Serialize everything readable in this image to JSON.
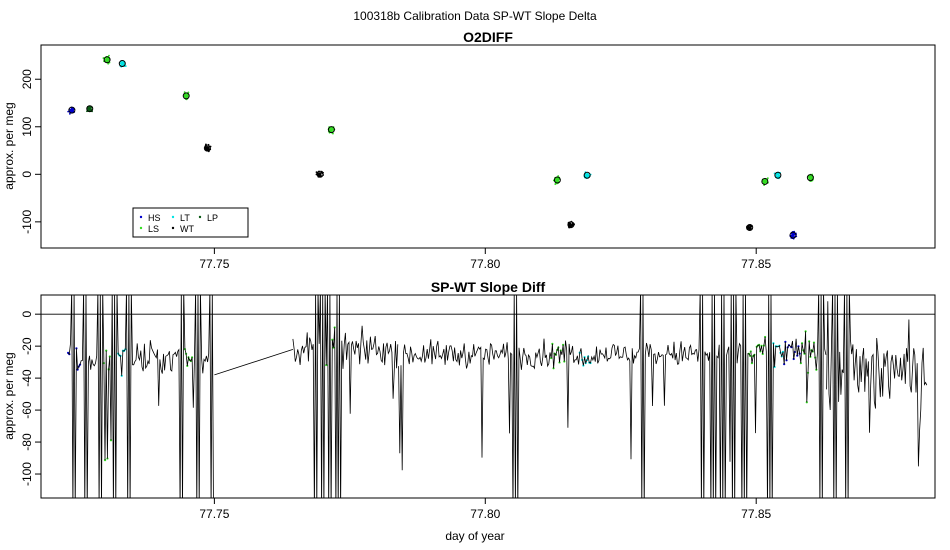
{
  "figure": {
    "suptitle": "100318b   Calibration Data SP-WT Slope Delta",
    "xlabel": "day of year"
  },
  "colors": {
    "HS": "#0000cd",
    "LS": "#33dd22",
    "LT": "#00e5e5",
    "WT": "#000000",
    "LP": "#0a5a14",
    "trace": "#000000"
  },
  "chart_data": [
    {
      "type": "scatter",
      "title": "O2DIFF",
      "xlabel": "",
      "ylabel": "approx. per meg",
      "xlim": [
        77.718,
        77.883
      ],
      "ylim": [
        -155,
        272
      ],
      "xticks": [
        77.75,
        77.8,
        77.85
      ],
      "xtick_labels": [
        "77.75",
        "77.80",
        "77.85"
      ],
      "yticks": [
        -100,
        0,
        100,
        200
      ],
      "ytick_labels": [
        "-100",
        "0",
        "100",
        "200"
      ],
      "legend": {
        "position": "bottom-left",
        "entries": [
          {
            "label": "HS",
            "color_key": "HS"
          },
          {
            "label": "LS",
            "color_key": "LS"
          },
          {
            "label": "LT",
            "color_key": "LT"
          },
          {
            "label": "WT",
            "color_key": "WT"
          },
          {
            "label": "LP",
            "color_key": "LP"
          }
        ]
      },
      "series": [
        {
          "name": "HS",
          "x": [
            77.7237,
            77.8568
          ],
          "y": [
            135,
            -128
          ]
        },
        {
          "name": "LS",
          "x": [
            77.7302,
            77.7448,
            77.7716,
            77.8133,
            77.8516,
            77.86
          ],
          "y": [
            241,
            165,
            94,
            -12,
            -15,
            -7
          ]
        },
        {
          "name": "LT",
          "x": [
            77.733,
            77.8188,
            77.854
          ],
          "y": [
            233,
            -2,
            -2
          ]
        },
        {
          "name": "WT",
          "x": [
            77.7487,
            77.7695,
            77.8158,
            77.8488
          ],
          "y": [
            55,
            0,
            -106,
            -112
          ]
        },
        {
          "name": "LP",
          "x": [
            77.727
          ],
          "y": [
            138
          ]
        }
      ]
    },
    {
      "type": "line",
      "title": "SP-WT Slope Diff",
      "xlabel": "day of year",
      "ylabel": "approx. per meg",
      "xlim": [
        77.718,
        77.883
      ],
      "ylim": [
        -115,
        12
      ],
      "xticks": [
        77.75,
        77.8,
        77.85
      ],
      "xtick_labels": [
        "77.75",
        "77.80",
        "77.85"
      ],
      "yticks": [
        -100,
        -80,
        -60,
        -40,
        -20,
        0
      ],
      "ytick_labels": [
        "-100",
        "-80",
        "-60",
        "-40",
        "-20",
        "0"
      ],
      "hline": 0,
      "trace_segments": [
        {
          "x_start": 77.723,
          "x_end": 77.75,
          "base": -28,
          "noise": 10
        },
        {
          "x_start": 77.7645,
          "x_end": 77.784,
          "base": -22,
          "noise": 10
        },
        {
          "x_start": 77.784,
          "x_end": 77.849,
          "base": -25,
          "noise": 8
        },
        {
          "x_start": 77.849,
          "x_end": 77.863,
          "base": -24,
          "noise": 10
        },
        {
          "x_start": 77.863,
          "x_end": 77.8815,
          "base": -34,
          "noise": 28
        }
      ],
      "connector": {
        "x": [
          77.75,
          77.7645
        ],
        "y": [
          -38,
          -22
        ]
      },
      "spikes_x": [
        77.724,
        77.7262,
        77.729,
        77.7315,
        77.7342,
        77.744,
        77.747,
        77.7495,
        77.7688,
        77.77,
        77.7712,
        77.7728,
        77.8055,
        77.829,
        77.84,
        77.842,
        77.8438,
        77.8458,
        77.8478,
        77.8525,
        77.862,
        77.8645,
        77.8668
      ],
      "highlights": [
        {
          "color_key": "HS",
          "x_start": 77.723,
          "x_end": 77.7255
        },
        {
          "color_key": "LS",
          "x_start": 77.729,
          "x_end": 77.7318
        },
        {
          "color_key": "LT",
          "x_start": 77.7318,
          "x_end": 77.7345
        },
        {
          "color_key": "LS",
          "x_start": 77.7438,
          "x_end": 77.746
        },
        {
          "color_key": "LS",
          "x_start": 77.7695,
          "x_end": 77.7725
        },
        {
          "color_key": "LS",
          "x_start": 77.812,
          "x_end": 77.815
        },
        {
          "color_key": "LT",
          "x_start": 77.817,
          "x_end": 77.82
        },
        {
          "color_key": "LS",
          "x_start": 77.8485,
          "x_end": 77.8522
        },
        {
          "color_key": "LT",
          "x_start": 77.8522,
          "x_end": 77.855
        },
        {
          "color_key": "HS",
          "x_start": 77.855,
          "x_end": 77.8582
        },
        {
          "color_key": "LS",
          "x_start": 77.8582,
          "x_end": 77.862
        }
      ]
    }
  ]
}
